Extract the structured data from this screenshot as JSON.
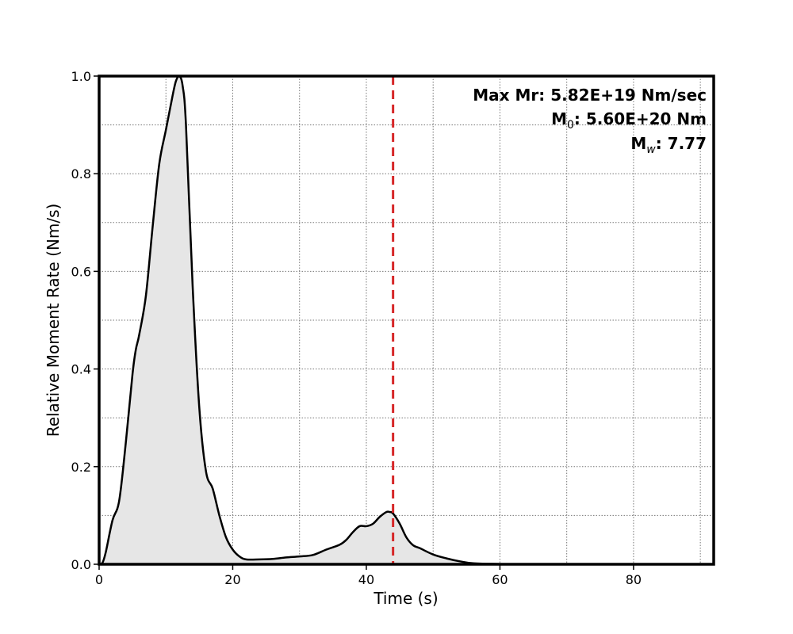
{
  "chart_data": {
    "type": "area",
    "title": "",
    "xlabel": "Time (s)",
    "ylabel": "Relative Moment Rate (Nm/s)",
    "xlim": [
      0,
      92
    ],
    "ylim": [
      0,
      1.0
    ],
    "x_major_ticks": [
      0,
      20,
      40,
      60,
      80
    ],
    "x_tick_labels": [
      "0",
      "20",
      "40",
      "60",
      "80"
    ],
    "x_minor_grid": [
      10,
      30,
      50,
      70,
      90
    ],
    "y_major_ticks": [
      0.0,
      0.2,
      0.4,
      0.6,
      0.8,
      1.0
    ],
    "y_tick_labels": [
      "0.0",
      "0.2",
      "0.4",
      "0.6",
      "0.8",
      "1.0"
    ],
    "y_minor_grid": [
      0.1,
      0.3,
      0.5,
      0.7,
      0.9
    ],
    "grid": true,
    "series": [
      {
        "x": [
          0,
          0.5,
          1,
          2,
          3,
          4,
          5,
          5.5,
          6,
          7,
          8,
          9,
          10,
          11,
          11.5,
          12,
          12.5,
          13,
          14,
          15,
          16,
          17,
          18,
          19,
          20,
          21,
          22,
          24,
          26,
          28,
          30,
          32,
          34,
          36,
          37,
          38,
          39,
          40,
          41,
          42,
          43,
          43.5,
          44,
          45,
          46,
          47,
          48,
          50,
          52,
          54,
          56,
          60,
          65,
          92
        ],
        "values": [
          0,
          0.003,
          0.025,
          0.09,
          0.13,
          0.25,
          0.39,
          0.44,
          0.47,
          0.55,
          0.69,
          0.82,
          0.89,
          0.96,
          0.99,
          1.0,
          0.98,
          0.9,
          0.57,
          0.32,
          0.19,
          0.155,
          0.1,
          0.055,
          0.03,
          0.016,
          0.01,
          0.01,
          0.011,
          0.014,
          0.016,
          0.019,
          0.03,
          0.04,
          0.05,
          0.066,
          0.078,
          0.078,
          0.083,
          0.097,
          0.107,
          0.107,
          0.104,
          0.083,
          0.055,
          0.039,
          0.033,
          0.02,
          0.012,
          0.006,
          0.002,
          0.0005,
          0,
          0
        ],
        "line_color": "#000000",
        "fill_color": "#e6e6e6"
      }
    ],
    "vline": {
      "x": 44,
      "color": "#d62728",
      "style": "dashed"
    },
    "annotations": {
      "line1": "Max Mr: 5.82E+19 Nm/sec",
      "line2_main": "M",
      "line2_sub": "0",
      "line2_rest": ": 5.60E+20 Nm",
      "line3_main": "M",
      "line3_sub": "w",
      "line3_rest": ": 7.77"
    },
    "annotation_placement": "top-right"
  }
}
